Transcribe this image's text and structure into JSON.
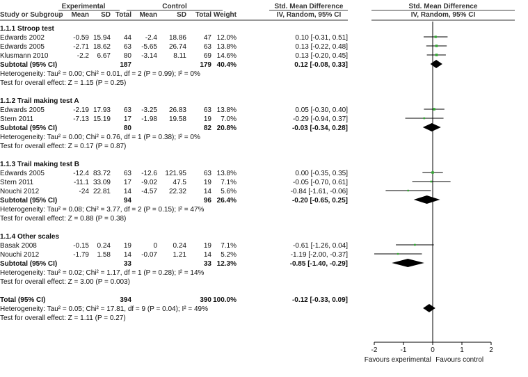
{
  "header": {
    "group1": "Experimental",
    "group2": "Control",
    "smd_label": "Std. Mean Difference",
    "method_label": "IV, Random, 95% CI",
    "plot_title": "Std. Mean Difference",
    "plot_method": "IV, Random, 95% CI",
    "columns": [
      "Study or Subgroup",
      "Mean",
      "SD",
      "Total",
      "Mean",
      "SD",
      "Total",
      "Weight"
    ]
  },
  "rows": [
    {
      "type": "group",
      "label": "1.1.1 Stroop test"
    },
    {
      "type": "study",
      "name": "Edwards 2002",
      "m1": "-0.59",
      "sd1": "15.94",
      "n1": "44",
      "m2": "-2.4",
      "sd2": "18.86",
      "n2": "47",
      "w": "12.0%",
      "ci": "0.10 [-0.31, 0.51]"
    },
    {
      "type": "study",
      "name": "Edwards 2005",
      "m1": "-2.71",
      "sd1": "18.62",
      "n1": "63",
      "m2": "-5.65",
      "sd2": "26.74",
      "n2": "63",
      "w": "13.8%",
      "ci": "0.13 [-0.22, 0.48]"
    },
    {
      "type": "study",
      "name": "Klusmann 2010",
      "m1": "-2.2",
      "sd1": "6.67",
      "n1": "80",
      "m2": "-3.14",
      "sd2": "8.11",
      "n2": "69",
      "w": "14.6%",
      "ci": "0.13 [-0.20, 0.45]"
    },
    {
      "type": "subtotal",
      "name": "Subtotal (95% CI)",
      "n1": "187",
      "n2": "179",
      "w": "40.4%",
      "ci": "0.12 [-0.08, 0.33]"
    },
    {
      "type": "text",
      "label": "Heterogeneity: Tau² = 0.00; Chi² = 0.01, df = 2 (P = 0.99); I² = 0%"
    },
    {
      "type": "text",
      "label": "Test for overall effect: Z = 1.15 (P = 0.25)"
    },
    {
      "type": "blank"
    },
    {
      "type": "group",
      "label": "1.1.2 Trail making test A"
    },
    {
      "type": "study",
      "name": "Edwards 2005",
      "m1": "-2.19",
      "sd1": "17.93",
      "n1": "63",
      "m2": "-3.25",
      "sd2": "26.83",
      "n2": "63",
      "w": "13.8%",
      "ci": "0.05 [-0.30, 0.40]"
    },
    {
      "type": "study",
      "name": "Stern 2011",
      "m1": "-7.13",
      "sd1": "15.19",
      "n1": "17",
      "m2": "-1.98",
      "sd2": "19.58",
      "n2": "19",
      "w": "7.0%",
      "ci": "-0.29 [-0.94, 0.37]"
    },
    {
      "type": "subtotal",
      "name": "Subtotal (95% CI)",
      "n1": "80",
      "n2": "82",
      "w": "20.8%",
      "ci": "-0.03 [-0.34, 0.28]"
    },
    {
      "type": "text",
      "label": "Heterogeneity: Tau² = 0.00; Chi² = 0.76, df = 1 (P = 0.38); I² = 0%"
    },
    {
      "type": "text",
      "label": "Test for overall effect: Z = 0.17 (P = 0.87)"
    },
    {
      "type": "blank"
    },
    {
      "type": "group",
      "label": "1.1.3 Trail making test B"
    },
    {
      "type": "study",
      "name": "Edwards 2005",
      "m1": "-12.4",
      "sd1": "83.72",
      "n1": "63",
      "m2": "-12.6",
      "sd2": "121.95",
      "n2": "63",
      "w": "13.8%",
      "ci": "0.00 [-0.35, 0.35]"
    },
    {
      "type": "study",
      "name": "Stern 2011",
      "m1": "-11.1",
      "sd1": "33.09",
      "n1": "17",
      "m2": "-9.02",
      "sd2": "47.5",
      "n2": "19",
      "w": "7.1%",
      "ci": "-0.05 [-0.70, 0.61]"
    },
    {
      "type": "study",
      "name": "Nouchi 2012",
      "m1": "-24",
      "sd1": "22.81",
      "n1": "14",
      "m2": "-4.57",
      "sd2": "22.32",
      "n2": "14",
      "w": "5.6%",
      "ci": "-0.84 [-1.61, -0.06]"
    },
    {
      "type": "subtotal",
      "name": "Subtotal (95% CI)",
      "n1": "94",
      "n2": "96",
      "w": "26.4%",
      "ci": "-0.20 [-0.65, 0.25]"
    },
    {
      "type": "text",
      "label": "Heterogeneity: Tau² = 0.08; Chi² = 3.77, df = 2 (P = 0.15); I² = 47%"
    },
    {
      "type": "text",
      "label": "Test for overall effect: Z = 0.88 (P = 0.38)"
    },
    {
      "type": "blank"
    },
    {
      "type": "group",
      "label": "1.1.4 Other scales"
    },
    {
      "type": "study",
      "name": "Basak 2008",
      "m1": "-0.15",
      "sd1": "0.24",
      "n1": "19",
      "m2": "0",
      "sd2": "0.24",
      "n2": "19",
      "w": "7.1%",
      "ci": "-0.61 [-1.26, 0.04]"
    },
    {
      "type": "study",
      "name": "Nouchi 2012",
      "m1": "-1.79",
      "sd1": "1.58",
      "n1": "14",
      "m2": "-0.07",
      "sd2": "1.21",
      "n2": "14",
      "w": "5.2%",
      "ci": "-1.19 [-2.00, -0.37]"
    },
    {
      "type": "subtotal",
      "name": "Subtotal (95% CI)",
      "n1": "33",
      "n2": "33",
      "w": "12.3%",
      "ci": "-0.85 [-1.40, -0.29]"
    },
    {
      "type": "text",
      "label": "Heterogeneity: Tau² = 0.02; Chi² = 1.17, df = 1 (P = 0.28); I² = 14%"
    },
    {
      "type": "text",
      "label": "Test for overall effect: Z = 3.00 (P = 0.003)"
    },
    {
      "type": "blank"
    },
    {
      "type": "subtotal",
      "name": "Total (95% CI)",
      "n1": "394",
      "n2": "390",
      "w": "100.0%",
      "ci": "-0.12 [-0.33, 0.09]"
    },
    {
      "type": "text",
      "label": "Heterogeneity: Tau² = 0.05; Chi² = 17.81, df = 9 (P = 0.04); I² = 49%"
    },
    {
      "type": "text",
      "label": "Test for overall effect: Z = 1.11 (P = 0.27)"
    }
  ],
  "chart_data": {
    "type": "forest",
    "title": "Std. Mean Difference",
    "subtitle": "IV, Random, 95% CI",
    "xlim": [
      -2,
      2
    ],
    "x_ticks": [
      "-2",
      "-1",
      "0",
      "1",
      "2"
    ],
    "favours_left": "Favours experimental",
    "favours_right": "Favours control",
    "estimates": [
      {
        "row": 1,
        "kind": "study",
        "est": 0.1,
        "lo": -0.31,
        "hi": 0.51,
        "weight": 12.0
      },
      {
        "row": 2,
        "kind": "study",
        "est": 0.13,
        "lo": -0.22,
        "hi": 0.48,
        "weight": 13.8
      },
      {
        "row": 3,
        "kind": "study",
        "est": 0.13,
        "lo": -0.2,
        "hi": 0.45,
        "weight": 14.6
      },
      {
        "row": 4,
        "kind": "diamond",
        "est": 0.12,
        "lo": -0.08,
        "hi": 0.33
      },
      {
        "row": 9,
        "kind": "study",
        "est": 0.05,
        "lo": -0.3,
        "hi": 0.4,
        "weight": 13.8
      },
      {
        "row": 10,
        "kind": "study",
        "est": -0.29,
        "lo": -0.94,
        "hi": 0.37,
        "weight": 7.0
      },
      {
        "row": 11,
        "kind": "diamond",
        "est": -0.03,
        "lo": -0.34,
        "hi": 0.28
      },
      {
        "row": 16,
        "kind": "study",
        "est": 0.0,
        "lo": -0.35,
        "hi": 0.35,
        "weight": 13.8
      },
      {
        "row": 17,
        "kind": "study",
        "est": -0.05,
        "lo": -0.7,
        "hi": 0.61,
        "weight": 7.1
      },
      {
        "row": 18,
        "kind": "study",
        "est": -0.84,
        "lo": -1.61,
        "hi": -0.06,
        "weight": 5.6
      },
      {
        "row": 19,
        "kind": "diamond",
        "est": -0.2,
        "lo": -0.65,
        "hi": 0.25
      },
      {
        "row": 24,
        "kind": "study",
        "est": -0.61,
        "lo": -1.26,
        "hi": 0.04,
        "weight": 7.1
      },
      {
        "row": 25,
        "kind": "study",
        "est": -1.19,
        "lo": -2.0,
        "hi": -0.37,
        "weight": 5.2
      },
      {
        "row": 26,
        "kind": "diamond",
        "est": -0.85,
        "lo": -1.4,
        "hi": -0.29
      },
      {
        "row": 31,
        "kind": "diamond",
        "est": -0.12,
        "lo": -0.33,
        "hi": 0.09
      }
    ],
    "colors": {
      "marker": "#33aa33",
      "line": "#000000",
      "header_line": "#333333"
    }
  }
}
